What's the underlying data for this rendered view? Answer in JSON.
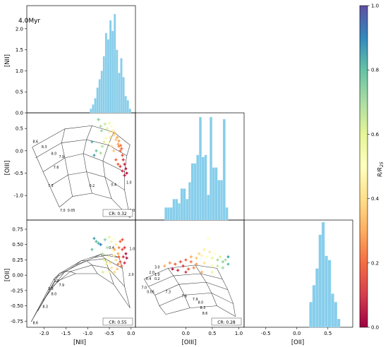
{
  "figure": {
    "age_label": "4.0Myr",
    "colorbar": {
      "label": "R/R25",
      "ticks": [
        "0.0",
        "0.2",
        "0.4",
        "0.6",
        "0.8",
        "1.0"
      ],
      "cmap": [
        "#9e0142",
        "#d53e4f",
        "#f46d43",
        "#fdae61",
        "#fee08b",
        "#ffffbf",
        "#e6f598",
        "#abdda4",
        "#66c2a5",
        "#3288bd",
        "#5e4fa2"
      ]
    },
    "hist_color": "#87ceeb",
    "cr_labels": {
      "oiii_vs_nii": "CR: 0.32",
      "oii_vs_nii": "CR: 0.55",
      "oii_vs_oiii": "CR: 0.28"
    }
  },
  "chart_data": [
    {
      "type": "bar",
      "panel": "NII histogram",
      "ylabel": "[NII]",
      "yticks": [
        "0.0",
        "0.5",
        "1.0",
        "1.5",
        "2.0"
      ],
      "xlim": [
        -2.4,
        0.1
      ],
      "ylim": [
        0,
        2.55
      ],
      "bin_edges": [
        -0.95,
        -0.9,
        -0.85,
        -0.8,
        -0.75,
        -0.7,
        -0.65,
        -0.6,
        -0.55,
        -0.5,
        -0.45,
        -0.4,
        -0.35,
        -0.3,
        -0.25,
        -0.2,
        -0.15,
        -0.1,
        -0.05,
        0.0
      ],
      "values": [
        0.1,
        0.2,
        0.35,
        0.6,
        0.8,
        1.0,
        1.35,
        1.9,
        1.75,
        2.2,
        1.95,
        2.35,
        1.5,
        0.95,
        1.3,
        0.85,
        0.4,
        0.3,
        0.1
      ]
    },
    {
      "type": "scatter",
      "panel": "OIII vs NII",
      "ylabel": "[OIII]",
      "yticks": [
        "0.5",
        "0.0",
        "-0.5",
        "-1.0"
      ],
      "xlim": [
        -2.4,
        0.1
      ],
      "ylim": [
        -1.55,
        0.85
      ],
      "points": [
        [
          -0.75,
          0.7,
          0.75
        ],
        [
          -0.7,
          0.55,
          0.7
        ],
        [
          -0.68,
          0.45,
          0.72
        ],
        [
          -0.6,
          0.6,
          0.65
        ],
        [
          -0.55,
          0.5,
          0.6
        ],
        [
          -0.5,
          0.62,
          0.55
        ],
        [
          -0.45,
          0.55,
          0.5
        ],
        [
          -0.42,
          0.45,
          0.45
        ],
        [
          -0.4,
          0.35,
          0.4
        ],
        [
          -0.35,
          0.25,
          0.35
        ],
        [
          -0.3,
          0.15,
          0.3
        ],
        [
          -0.28,
          0.1,
          0.25
        ],
        [
          -0.25,
          0.0,
          0.2
        ],
        [
          -0.2,
          -0.1,
          0.15
        ],
        [
          -0.18,
          -0.2,
          0.1
        ],
        [
          -0.15,
          -0.3,
          0.08
        ],
        [
          -0.12,
          -0.4,
          0.05
        ],
        [
          -0.1,
          -0.5,
          0.05
        ],
        [
          -0.22,
          0.05,
          0.2
        ],
        [
          -0.32,
          0.3,
          0.3
        ],
        [
          -0.38,
          0.4,
          0.32
        ],
        [
          -0.48,
          0.3,
          0.42
        ],
        [
          -0.52,
          0.18,
          0.5
        ],
        [
          -0.58,
          0.28,
          0.55
        ],
        [
          -0.62,
          0.2,
          0.6
        ],
        [
          -0.66,
          0.1,
          0.68
        ],
        [
          -0.8,
          0.0,
          0.78
        ],
        [
          -0.85,
          -0.1,
          0.85
        ],
        [
          -0.9,
          0.2,
          0.82
        ],
        [
          -0.7,
          -0.05,
          0.7
        ],
        [
          -0.35,
          -0.2,
          0.2
        ],
        [
          -0.3,
          -0.3,
          0.18
        ],
        [
          -0.25,
          -0.35,
          0.12
        ],
        [
          -0.2,
          -0.45,
          0.1
        ],
        [
          -0.15,
          -0.55,
          0.05
        ],
        [
          -0.4,
          0.0,
          0.35
        ],
        [
          -0.45,
          0.1,
          0.38
        ],
        [
          -0.5,
          0.42,
          0.45
        ],
        [
          -0.28,
          0.22,
          0.28
        ],
        [
          -0.24,
          0.12,
          0.22
        ]
      ],
      "grid_labels": [
        "8.6",
        "8.3",
        "8.0",
        "7.9",
        "7.6",
        "7.3",
        "7.0",
        "0.05",
        "0.2",
        "0.4",
        "1.0",
        "2.0"
      ]
    },
    {
      "type": "bar",
      "panel": "OIII histogram",
      "xlim": [
        -0.95,
        1.1
      ],
      "ylim": [
        0,
        2.55
      ],
      "bin_edges": [
        -0.4,
        -0.35,
        -0.3,
        -0.25,
        -0.2,
        -0.15,
        -0.1,
        -0.05,
        0.0,
        0.05,
        0.1,
        0.15,
        0.2,
        0.25,
        0.3,
        0.35,
        0.4,
        0.45,
        0.5,
        0.55,
        0.6,
        0.65,
        0.7,
        0.75,
        0.8
      ],
      "values": [
        0.3,
        0.3,
        0.3,
        0.5,
        0.5,
        0.4,
        0.75,
        0.75,
        0.5,
        0.9,
        1.35,
        1.35,
        1.55,
        2.45,
        1.5,
        1.55,
        0.6,
        2.45,
        1.25,
        1.25,
        0.95,
        0.95,
        2.4,
        0.3
      ]
    },
    {
      "type": "scatter",
      "panel": "OII vs NII",
      "ylabel": "[OII]",
      "xlabel": "[NII]",
      "yticks": [
        "0.75",
        "0.50",
        "0.25",
        "0.00",
        "-0.25",
        "-0.50",
        "-0.75"
      ],
      "xticks": [
        "-2.0",
        "-1.5",
        "-1.0",
        "-0.5",
        "0.0"
      ],
      "xlim": [
        -2.4,
        0.1
      ],
      "ylim": [
        -0.85,
        0.9
      ],
      "points": [
        [
          -0.8,
          0.55,
          0.8
        ],
        [
          -0.75,
          0.52,
          0.82
        ],
        [
          -0.7,
          0.5,
          0.9
        ],
        [
          -0.6,
          0.58,
          0.75
        ],
        [
          -0.55,
          0.45,
          0.7
        ],
        [
          -0.5,
          0.62,
          0.6
        ],
        [
          -0.45,
          0.55,
          0.55
        ],
        [
          -0.42,
          0.4,
          0.5
        ],
        [
          -0.4,
          0.32,
          0.45
        ],
        [
          -0.35,
          0.25,
          0.4
        ],
        [
          -0.3,
          0.35,
          0.3
        ],
        [
          -0.28,
          0.45,
          0.25
        ],
        [
          -0.25,
          0.55,
          0.2
        ],
        [
          -0.2,
          0.42,
          0.15
        ],
        [
          -0.18,
          0.3,
          0.1
        ],
        [
          -0.15,
          0.2,
          0.08
        ],
        [
          -0.12,
          0.35,
          0.05
        ],
        [
          -0.1,
          0.28,
          0.05
        ],
        [
          -0.22,
          0.15,
          0.2
        ],
        [
          -0.32,
          0.1,
          0.35
        ],
        [
          -0.38,
          0.05,
          0.38
        ],
        [
          -0.48,
          0.2,
          0.42
        ],
        [
          -0.52,
          0.3,
          0.5
        ],
        [
          -0.58,
          0.18,
          0.55
        ],
        [
          -0.62,
          0.25,
          0.6
        ],
        [
          -0.66,
          0.35,
          0.68
        ],
        [
          -0.9,
          0.42,
          0.78
        ],
        [
          -0.85,
          0.6,
          0.85
        ],
        [
          -0.35,
          0.5,
          0.45
        ],
        [
          -0.4,
          0.6,
          0.5
        ],
        [
          -0.25,
          0.22,
          0.18
        ],
        [
          -0.3,
          0.18,
          0.25
        ],
        [
          -0.15,
          0.45,
          0.12
        ],
        [
          -0.2,
          0.58,
          0.15
        ],
        [
          -0.45,
          0.12,
          0.4
        ],
        [
          -0.5,
          0.05,
          0.45
        ],
        [
          -0.55,
          0.22,
          0.58
        ],
        [
          -0.65,
          0.05,
          0.62
        ],
        [
          -0.38,
          0.42,
          0.3
        ],
        [
          -0.28,
          0.3,
          0.2
        ]
      ],
      "grid_labels": [
        "8.6",
        "8.3",
        "8.0",
        "7.9",
        "7.6",
        "7.3",
        "0.4",
        "1.0",
        "2.0"
      ]
    },
    {
      "type": "scatter",
      "panel": "OII vs OIII",
      "xlabel": "[OIII]",
      "xticks": [
        "0.0",
        "0.5",
        "1.0"
      ],
      "xlim": [
        -0.95,
        1.1
      ],
      "ylim": [
        -0.85,
        0.9
      ],
      "points": [
        [
          -0.4,
          0.15,
          0.3
        ],
        [
          -0.3,
          0.2,
          0.25
        ],
        [
          -0.2,
          0.18,
          0.2
        ],
        [
          -0.1,
          0.22,
          0.15
        ],
        [
          0.0,
          0.25,
          0.2
        ],
        [
          0.1,
          0.3,
          0.3
        ],
        [
          0.2,
          0.28,
          0.35
        ],
        [
          0.3,
          0.32,
          0.45
        ],
        [
          0.4,
          0.3,
          0.5
        ],
        [
          0.5,
          0.28,
          0.6
        ],
        [
          0.6,
          0.25,
          0.7
        ],
        [
          0.7,
          0.22,
          0.75
        ],
        [
          0.8,
          0.18,
          0.8
        ],
        [
          0.5,
          0.15,
          0.55
        ],
        [
          0.35,
          0.2,
          0.4
        ],
        [
          0.25,
          0.35,
          0.38
        ],
        [
          0.15,
          0.12,
          0.25
        ],
        [
          0.05,
          0.1,
          0.18
        ],
        [
          -0.05,
          0.15,
          0.1
        ],
        [
          -0.15,
          0.08,
          0.08
        ],
        [
          -0.25,
          0.1,
          0.05
        ],
        [
          0.45,
          0.38,
          0.42
        ],
        [
          0.55,
          0.35,
          0.5
        ],
        [
          0.65,
          0.3,
          0.62
        ],
        [
          0.75,
          0.25,
          0.7
        ],
        [
          0.35,
          0.42,
          0.45
        ],
        [
          0.2,
          0.18,
          0.28
        ],
        [
          0.1,
          0.22,
          0.22
        ],
        [
          0.6,
          0.15,
          0.65
        ],
        [
          0.7,
          0.12,
          0.72
        ],
        [
          0.42,
          0.6,
          0.5
        ],
        [
          0.3,
          0.05,
          0.3
        ],
        [
          0.0,
          0.05,
          0.1
        ],
        [
          0.5,
          0.05,
          0.58
        ],
        [
          0.8,
          0.3,
          0.85
        ]
      ],
      "grid_labels": [
        "3.0",
        "2.0",
        "1.0",
        "0.4",
        "0.2",
        "7.0",
        "0.05",
        "7.3",
        "7.6",
        "7.9",
        "8.0",
        "8.3",
        "8.6"
      ]
    },
    {
      "type": "bar",
      "panel": "OII histogram",
      "xlabel": "[OII]",
      "xticks": [
        "-0.5",
        "0.0",
        "0.5"
      ],
      "xlim": [
        -0.85,
        0.9
      ],
      "ylim": [
        0,
        2.55
      ],
      "bin_edges": [
        0.2,
        0.25,
        0.3,
        0.35,
        0.4,
        0.45,
        0.5,
        0.55,
        0.6,
        0.65,
        0.7
      ],
      "values": [
        0.6,
        1.0,
        1.4,
        2.2,
        2.5,
        1.7,
        1.6,
        0.8,
        0.6,
        0.2
      ]
    }
  ]
}
